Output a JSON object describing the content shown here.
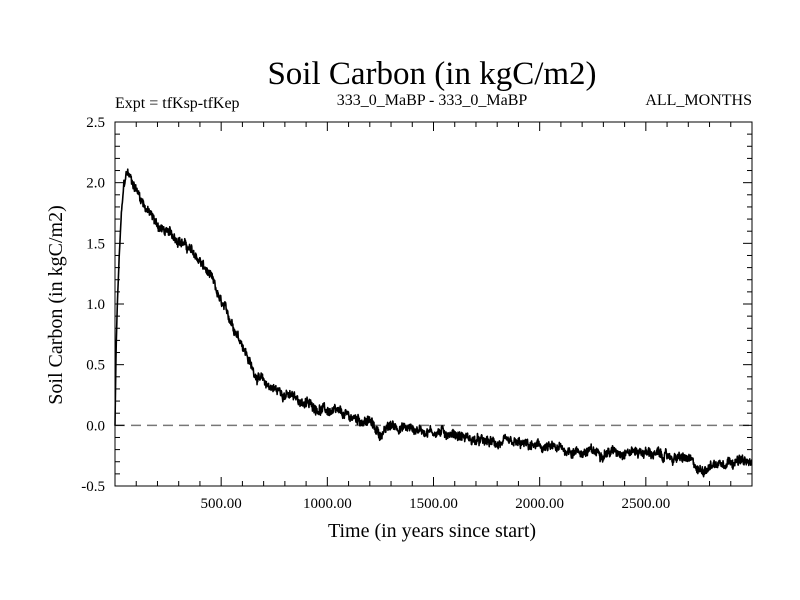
{
  "chart_data": {
    "type": "line",
    "title": "Soil Carbon (in kgC/m2)",
    "subtitle_left": "Expt = tfKsp-tfKep",
    "subtitle_center": "333_0_MaBP - 333_0_MaBP",
    "subtitle_right": "ALL_MONTHS",
    "xlabel": "Time (in years since start)",
    "ylabel": "Soil Carbon (in kgC/m2)",
    "xlim": [
      0,
      3000
    ],
    "ylim": [
      -0.5,
      2.5
    ],
    "xticks": [
      500,
      1000,
      1500,
      2000,
      2500
    ],
    "xtick_labels": [
      "500.00",
      "1000.00",
      "1500.00",
      "2000.00",
      "2500.00"
    ],
    "yticks": [
      -0.5,
      0.0,
      0.5,
      1.0,
      1.5,
      2.0,
      2.5
    ],
    "ytick_labels": [
      "-0.5",
      "0.0",
      "0.5",
      "1.0",
      "1.5",
      "2.0",
      "2.5"
    ],
    "reference_line": {
      "y": 0.0,
      "style": "dashed",
      "color": "#777777"
    },
    "series": [
      {
        "name": "Soil Carbon",
        "color": "#000000",
        "noise_amplitude": 0.03,
        "x": [
          0,
          5,
          10,
          20,
          30,
          40,
          50,
          60,
          75,
          100,
          150,
          200,
          250,
          300,
          350,
          400,
          450,
          500,
          550,
          600,
          650,
          700,
          750,
          800,
          850,
          900,
          1000,
          1100,
          1200,
          1250,
          1300,
          1400,
          1500,
          1600,
          1700,
          1800,
          1900,
          2000,
          2100,
          2200,
          2300,
          2400,
          2500,
          2600,
          2700,
          2750,
          2800,
          2900,
          3000
        ],
        "y": [
          0.0,
          0.6,
          0.95,
          1.4,
          1.75,
          1.95,
          2.05,
          2.08,
          2.03,
          1.95,
          1.78,
          1.65,
          1.58,
          1.54,
          1.45,
          1.35,
          1.22,
          1.0,
          0.85,
          0.68,
          0.45,
          0.35,
          0.3,
          0.26,
          0.22,
          0.18,
          0.12,
          0.07,
          0.03,
          -0.08,
          0.0,
          -0.03,
          -0.05,
          -0.07,
          -0.13,
          -0.15,
          -0.16,
          -0.18,
          -0.2,
          -0.22,
          -0.22,
          -0.21,
          -0.22,
          -0.26,
          -0.28,
          -0.38,
          -0.33,
          -0.28,
          -0.32
        ]
      }
    ]
  }
}
